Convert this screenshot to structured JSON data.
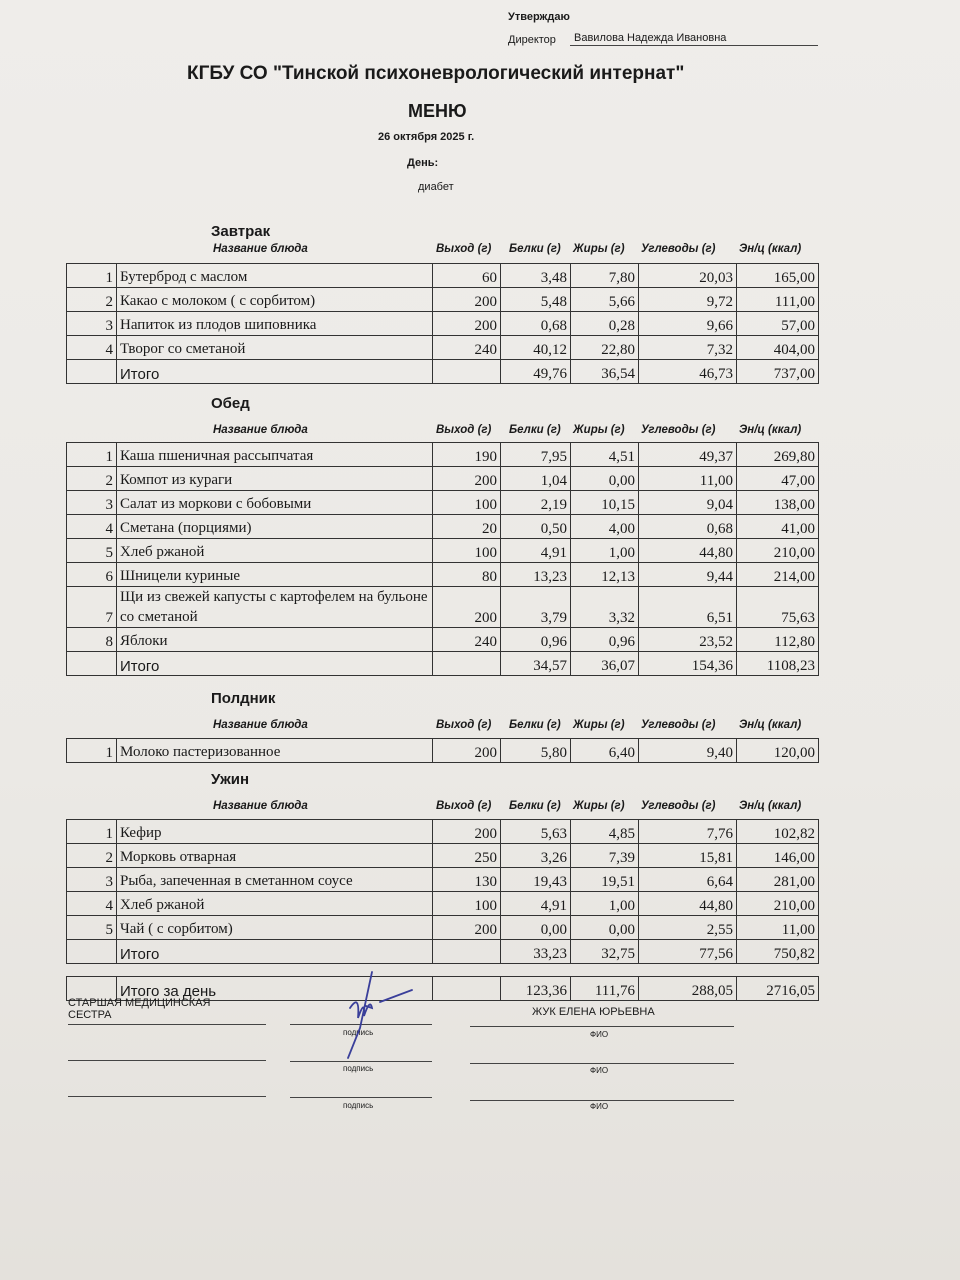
{
  "approval": {
    "label": "Утверждаю",
    "role": "Директор",
    "name": "Вавилова Надежда Ивановна"
  },
  "org_title": "КГБУ СО \"Тинской психоневрологический интернат\"",
  "doc_title": "МЕНЮ",
  "date": "26 октября 2025 г.",
  "day_label": "День:",
  "diet": "диабет",
  "columns": {
    "name": "Название блюда",
    "yield": "Выход (г)",
    "protein": "Белки (г)",
    "fat": "Жиры (г)",
    "carbs": "Углеводы (г)",
    "energy": "Эн/ц (ккал)"
  },
  "sections": [
    {
      "title": "Завтрак",
      "rows": [
        [
          "1",
          "Бутерброд с маслом",
          "60",
          "3,48",
          "7,80",
          "20,03",
          "165,00"
        ],
        [
          "2",
          "Какао с молоком ( с сорбитом)",
          "200",
          "5,48",
          "5,66",
          "9,72",
          "111,00"
        ],
        [
          "3",
          "Напиток из плодов шиповника",
          "200",
          "0,68",
          "0,28",
          "9,66",
          "57,00"
        ],
        [
          "4",
          "Творог со  сметаной",
          "240",
          "40,12",
          "22,80",
          "7,32",
          "404,00"
        ]
      ],
      "total": [
        "",
        "Итого",
        "",
        "49,76",
        "36,54",
        "46,73",
        "737,00"
      ]
    },
    {
      "title": "Обед",
      "rows": [
        [
          "1",
          "Каша пшеничная рассыпчатая",
          "190",
          "7,95",
          "4,51",
          "49,37",
          "269,80"
        ],
        [
          "2",
          "Компот из кураги",
          "200",
          "1,04",
          "0,00",
          "11,00",
          "47,00"
        ],
        [
          "3",
          "Салат из моркови с бобовыми",
          "100",
          "2,19",
          "10,15",
          "9,04",
          "138,00"
        ],
        [
          "4",
          "Сметана (порциями)",
          "20",
          "0,50",
          "4,00",
          "0,68",
          "41,00"
        ],
        [
          "5",
          "Хлеб ржаной",
          "100",
          "4,91",
          "1,00",
          "44,80",
          "210,00"
        ],
        [
          "6",
          "Шницели куриные",
          "80",
          "13,23",
          "12,13",
          "9,44",
          "214,00"
        ],
        [
          "7",
          "Щи из свежей капусты с картофелем на бульоне со сметаной",
          "200",
          "3,79",
          "3,32",
          "6,51",
          "75,63"
        ],
        [
          "8",
          "Яблоки",
          "240",
          "0,96",
          "0,96",
          "23,52",
          "112,80"
        ]
      ],
      "total": [
        "",
        "Итого",
        "",
        "34,57",
        "36,07",
        "154,36",
        "1108,23"
      ]
    },
    {
      "title": "Полдник",
      "rows": [
        [
          "1",
          "Молоко пастеризованное",
          "200",
          "5,80",
          "6,40",
          "9,40",
          "120,00"
        ]
      ]
    },
    {
      "title": "Ужин",
      "rows": [
        [
          "1",
          "Кефир",
          "200",
          "5,63",
          "4,85",
          "7,76",
          "102,82"
        ],
        [
          "2",
          "Морковь отварная",
          "250",
          "3,26",
          "7,39",
          "15,81",
          "146,00"
        ],
        [
          "3",
          "Рыба, запеченная в сметанном соусе",
          "130",
          "19,43",
          "19,51",
          "6,64",
          "281,00"
        ],
        [
          "4",
          "Хлеб ржаной",
          "100",
          "4,91",
          "1,00",
          "44,80",
          "210,00"
        ],
        [
          "5",
          "Чай ( с сорбитом)",
          "200",
          "0,00",
          "0,00",
          "2,55",
          "11,00"
        ]
      ],
      "total": [
        "",
        "Итого",
        "",
        "33,23",
        "32,75",
        "77,56",
        "750,82"
      ]
    }
  ],
  "day_total": [
    "",
    "Итого за день",
    "",
    "123,36",
    "111,76",
    "288,05",
    "2716,05"
  ],
  "footer": {
    "position": "СТАРШАЯ МЕДИЦИНСКАЯ СЕСТРА",
    "signer": "ЖУК ЕЛЕНА ЮРЬЕВНА",
    "sign_label": "подпись",
    "fio_label": "ФИО"
  },
  "colors": {
    "ink": "#1a1a1a",
    "signature": "#3a3f9a",
    "paper": "#ebe9e5"
  }
}
